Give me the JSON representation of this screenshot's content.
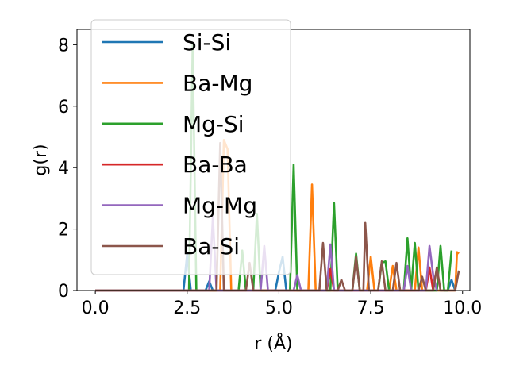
{
  "chart_data": {
    "type": "line",
    "xlabel": "r (Å)",
    "ylabel": "g(r)",
    "xlim": [
      -0.5,
      10.2
    ],
    "ylim": [
      0,
      8.5
    ],
    "xticks": [
      0.0,
      2.5,
      5.0,
      7.5,
      10.0
    ],
    "xtick_labels": [
      "0.0",
      "2.5",
      "5.0",
      "7.5",
      "10.0"
    ],
    "yticks": [
      0,
      2,
      4,
      6,
      8
    ],
    "ytick_labels": [
      "0",
      "2",
      "4",
      "6",
      "8"
    ],
    "grid": false,
    "legend_position": "upper-left",
    "series": [
      {
        "name": "Si-Si",
        "color": "#1f77b4",
        "x": [
          0,
          2.4,
          2.5,
          2.6,
          3.0,
          3.1,
          3.2,
          4.9,
          5.0,
          5.1,
          5.2,
          9.6,
          9.7,
          9.8
        ],
        "y": [
          0,
          0,
          1.2,
          0,
          0,
          0.3,
          0,
          0,
          0.6,
          1.1,
          0,
          0,
          0.35,
          0
        ]
      },
      {
        "name": "Ba-Mg",
        "color": "#ff7f0e",
        "x": [
          0,
          3.4,
          3.5,
          3.6,
          3.7,
          5.8,
          5.9,
          6.0,
          7.4,
          7.5,
          7.6,
          8.0,
          8.1,
          8.2,
          8.7,
          8.8,
          8.9,
          9.8,
          9.85,
          9.9
        ],
        "y": [
          0,
          0,
          4.9,
          4.6,
          0,
          0,
          3.45,
          0,
          0,
          1.1,
          0,
          0,
          0.8,
          0,
          0,
          1.4,
          0,
          0,
          1.25,
          1.2
        ]
      },
      {
        "name": "Mg-Si",
        "color": "#2ca02c",
        "x": [
          0,
          2.55,
          2.65,
          2.75,
          3.9,
          4.0,
          4.1,
          4.3,
          4.4,
          4.5,
          5.3,
          5.4,
          5.5,
          6.4,
          6.5,
          6.6,
          7.0,
          7.1,
          7.2,
          7.7,
          7.8,
          7.9,
          8.0,
          8.4,
          8.5,
          8.6,
          8.7,
          8.8,
          9.3,
          9.4,
          9.5,
          9.6,
          9.7
        ],
        "y": [
          0,
          0,
          8.0,
          0,
          0,
          1.3,
          0,
          0,
          2.5,
          0,
          0,
          4.1,
          0,
          0,
          2.85,
          0,
          0,
          1.2,
          0,
          0,
          0.9,
          0.95,
          0,
          0,
          1.7,
          0,
          1.55,
          0,
          0,
          1.45,
          0,
          0,
          1.3
        ]
      },
      {
        "name": "Ba-Ba",
        "color": "#d62728",
        "x": [
          0,
          6.3,
          6.4,
          6.5,
          9.0,
          9.1,
          9.2
        ],
        "y": [
          0,
          0,
          0.7,
          0,
          0,
          0.75,
          0
        ]
      },
      {
        "name": "Mg-Mg",
        "color": "#9467bd",
        "x": [
          0,
          3.1,
          3.2,
          3.3,
          4.5,
          4.6,
          4.7,
          5.4,
          5.5,
          5.6,
          6.3,
          6.4,
          6.5,
          8.4,
          8.5,
          8.6,
          9.0,
          9.1,
          9.2,
          9.3
        ],
        "y": [
          0,
          0,
          2.4,
          0,
          0,
          1.45,
          0,
          0,
          0.5,
          0,
          0,
          1.5,
          0,
          0,
          0.8,
          0,
          0,
          1.45,
          0.5,
          0
        ]
      },
      {
        "name": "Ba-Si",
        "color": "#8c564b",
        "x": [
          0,
          3.3,
          3.4,
          3.5,
          4.1,
          4.2,
          4.3,
          6.1,
          6.2,
          6.3,
          6.6,
          6.7,
          6.8,
          7.0,
          7.1,
          7.2,
          7.3,
          7.35,
          7.45,
          7.55,
          7.7,
          7.8,
          7.9,
          8.1,
          8.2,
          8.3,
          8.8,
          8.9,
          9.0,
          9.2,
          9.3,
          9.4,
          9.8,
          9.9
        ],
        "y": [
          0,
          0,
          4.8,
          0,
          0,
          0.9,
          0,
          0,
          1.55,
          0,
          0,
          0.35,
          0,
          0,
          1.1,
          0,
          0,
          2.2,
          0,
          0,
          0,
          0.95,
          0,
          0,
          0.9,
          0,
          0,
          0.45,
          0,
          0,
          0.75,
          0,
          0,
          0.65
        ]
      }
    ]
  }
}
